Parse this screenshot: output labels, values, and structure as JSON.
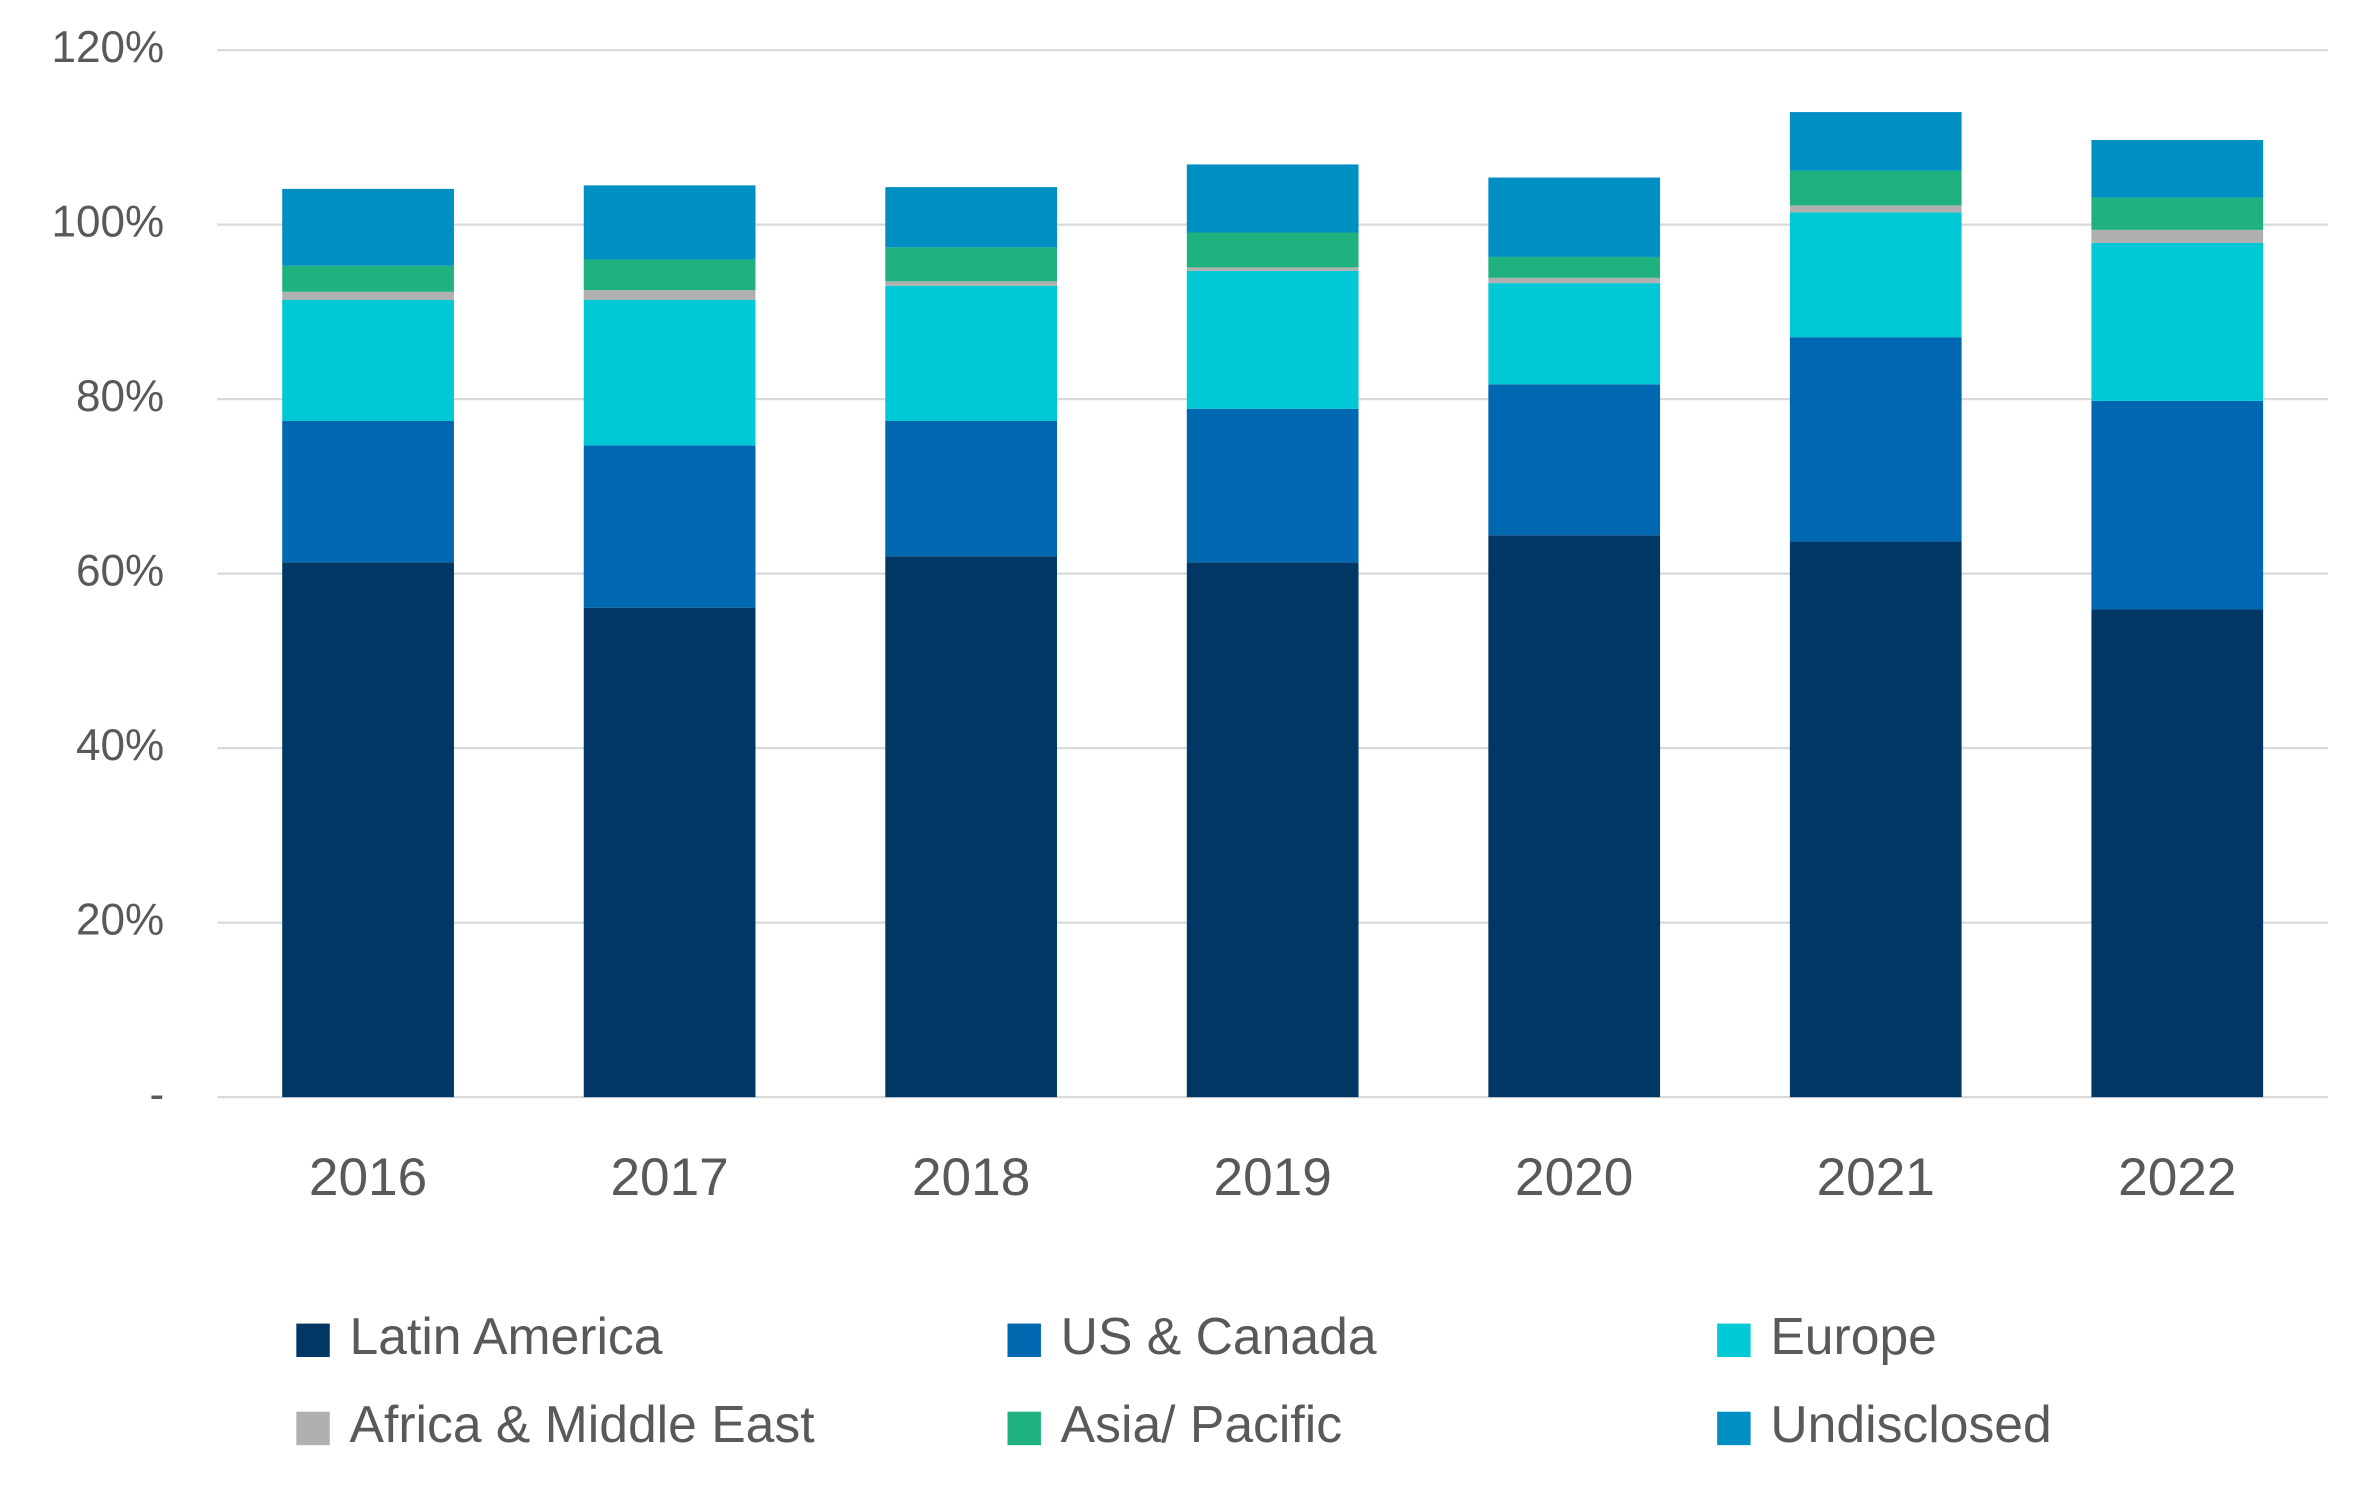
{
  "chart_data": {
    "type": "stacked_bar",
    "categories": [
      "2016",
      "2017",
      "2018",
      "2019",
      "2020",
      "2021",
      "2022"
    ],
    "series": [
      {
        "name": "Latin America",
        "color": "#003764",
        "values": [
          61.3,
          56.1,
          62.0,
          61.3,
          64.4,
          63.7,
          55.9
        ]
      },
      {
        "name": "US & Canada",
        "color": "#0068b1",
        "values": [
          16.2,
          18.6,
          15.5,
          17.6,
          17.3,
          23.4,
          23.9
        ]
      },
      {
        "name": "Europe",
        "color": "#00c8d4",
        "values": [
          13.9,
          16.7,
          15.5,
          15.8,
          11.6,
          14.3,
          18.1
        ]
      },
      {
        "name": "Africa & Middle East",
        "color": "#b0b0b0",
        "values": [
          0.9,
          1.1,
          0.5,
          0.4,
          0.6,
          0.8,
          1.5
        ]
      },
      {
        "name": "Asia/ Pacific",
        "color": "#1fb27f",
        "values": [
          3.0,
          3.5,
          3.9,
          4.0,
          2.4,
          4.0,
          3.7
        ]
      },
      {
        "name": "Undisclosed",
        "color": "#008fc3",
        "values": [
          8.8,
          8.5,
          6.9,
          7.8,
          9.1,
          6.7,
          6.6
        ]
      }
    ],
    "ylim": [
      0,
      120
    ],
    "yticks": [
      {
        "value": 0,
        "label": "-"
      },
      {
        "value": 20,
        "label": "20%"
      },
      {
        "value": 40,
        "label": "40%"
      },
      {
        "value": 60,
        "label": "60%"
      },
      {
        "value": 80,
        "label": "80%"
      },
      {
        "value": 100,
        "label": "100%"
      },
      {
        "value": 120,
        "label": "120%"
      }
    ],
    "grid": true
  }
}
